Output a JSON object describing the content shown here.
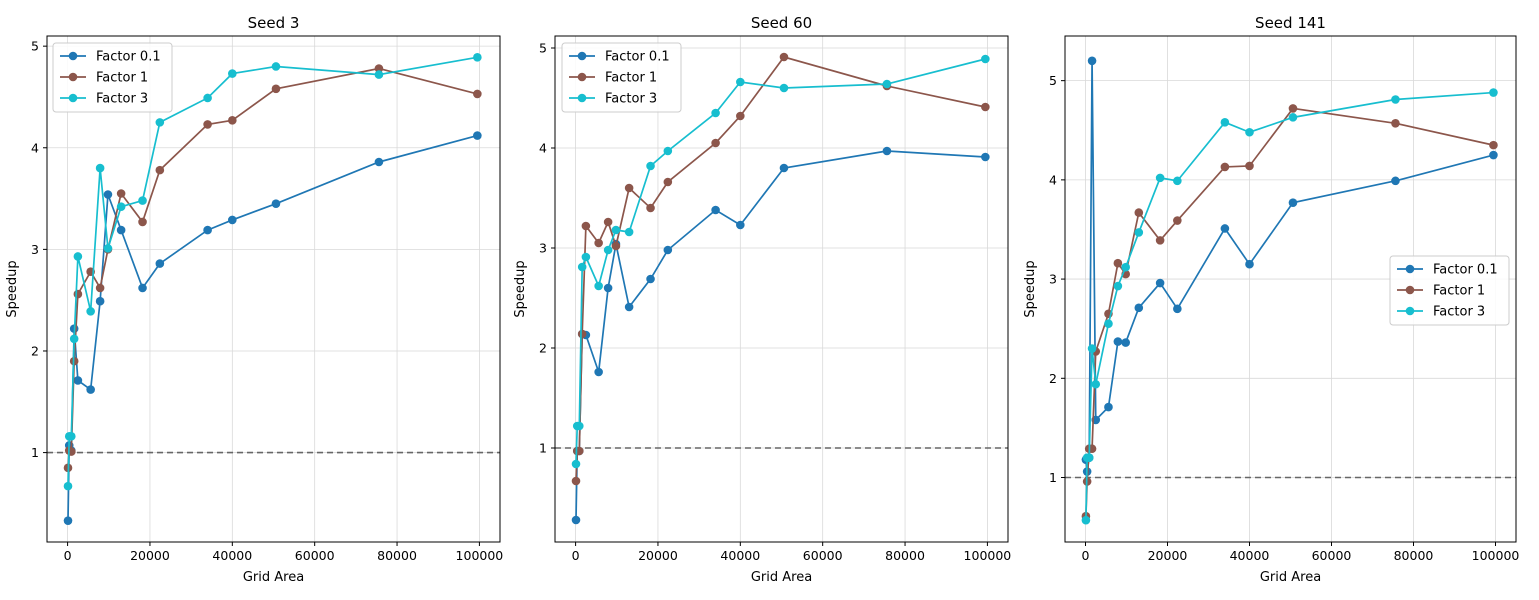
{
  "chart_data": [
    {
      "type": "line",
      "title": "Seed 3",
      "xlabel": "Grid Area",
      "ylabel": "Speedup",
      "xlim": [
        -5000,
        105000
      ],
      "ylim": [
        0.12,
        5.1
      ],
      "xticks": [
        0,
        20000,
        40000,
        60000,
        80000,
        100000
      ],
      "xtick_labels": [
        "0",
        "20000",
        "40000",
        "60000",
        "80000",
        "100000"
      ],
      "yticks": [
        1,
        2,
        3,
        4,
        5
      ],
      "ytick_labels": [
        "1",
        "2",
        "3",
        "4",
        "5"
      ],
      "reference_line": {
        "y": 1,
        "style": "dashed",
        "color": "#666666"
      },
      "grid": true,
      "legend_position": "upper-left",
      "series": [
        {
          "name": "Factor 0.1",
          "color": "#1f77b4",
          "x": [
            100,
            400,
            900,
            1600,
            2500,
            5600,
            7900,
            9800,
            13000,
            18200,
            22400,
            34000,
            40000,
            50600,
            75600,
            99500
          ],
          "y": [
            0.33,
            1.07,
            1.02,
            2.22,
            1.71,
            1.62,
            2.49,
            3.54,
            3.19,
            2.62,
            2.86,
            3.19,
            3.29,
            3.45,
            3.86,
            4.12
          ]
        },
        {
          "name": "Factor 1",
          "color": "#8c564b",
          "x": [
            100,
            400,
            900,
            1600,
            2500,
            5600,
            7900,
            9800,
            13000,
            18200,
            22400,
            34000,
            40000,
            50600,
            75600,
            99500
          ],
          "y": [
            0.85,
            1.02,
            1.01,
            1.9,
            2.56,
            2.78,
            2.62,
            3.0,
            3.55,
            3.27,
            3.78,
            4.23,
            4.27,
            4.58,
            4.78,
            4.53
          ]
        },
        {
          "name": "Factor 3",
          "color": "#17becf",
          "x": [
            100,
            400,
            900,
            1600,
            2500,
            5600,
            7900,
            9800,
            13000,
            18200,
            22400,
            34000,
            40000,
            50600,
            75600,
            99500
          ],
          "y": [
            0.67,
            1.16,
            1.16,
            2.12,
            2.93,
            2.39,
            3.8,
            3.01,
            3.42,
            3.48,
            4.25,
            4.49,
            4.73,
            4.8,
            4.72,
            4.89
          ]
        }
      ]
    },
    {
      "type": "line",
      "title": "Seed 60",
      "xlabel": "Grid Area",
      "ylabel": "Speedup",
      "xlim": [
        -5000,
        105000
      ],
      "ylim": [
        0.06,
        5.12
      ],
      "xticks": [
        0,
        20000,
        40000,
        60000,
        80000,
        100000
      ],
      "xtick_labels": [
        "0",
        "20000",
        "40000",
        "60000",
        "80000",
        "100000"
      ],
      "yticks": [
        1,
        2,
        3,
        4,
        5
      ],
      "ytick_labels": [
        "1",
        "2",
        "3",
        "4",
        "5"
      ],
      "reference_line": {
        "y": 1,
        "style": "dashed",
        "color": "#666666"
      },
      "grid": true,
      "legend_position": "upper-left",
      "series": [
        {
          "name": "Factor 0.1",
          "color": "#1f77b4",
          "x": [
            100,
            400,
            900,
            1600,
            2500,
            5600,
            7900,
            9800,
            13000,
            18200,
            22400,
            34000,
            40000,
            50600,
            75600,
            99500
          ],
          "y": [
            0.28,
            0.97,
            0.97,
            2.14,
            2.13,
            1.76,
            2.6,
            3.04,
            2.41,
            2.69,
            2.98,
            3.38,
            3.23,
            3.8,
            3.97,
            3.91
          ]
        },
        {
          "name": "Factor 1",
          "color": "#8c564b",
          "x": [
            100,
            400,
            900,
            1600,
            2500,
            5600,
            7900,
            9800,
            13000,
            18200,
            22400,
            34000,
            40000,
            50600,
            75600,
            99500
          ],
          "y": [
            0.67,
            0.97,
            0.97,
            2.14,
            3.22,
            3.05,
            3.26,
            3.02,
            3.6,
            3.4,
            3.66,
            4.05,
            4.32,
            4.91,
            4.62,
            4.41
          ]
        },
        {
          "name": "Factor 3",
          "color": "#17becf",
          "x": [
            100,
            400,
            900,
            1600,
            2500,
            5600,
            7900,
            9800,
            13000,
            18200,
            22400,
            34000,
            40000,
            50600,
            75600,
            99500
          ],
          "y": [
            0.84,
            1.22,
            1.22,
            2.81,
            2.91,
            2.62,
            2.98,
            3.18,
            3.16,
            3.82,
            3.97,
            4.35,
            4.66,
            4.6,
            4.64,
            4.89
          ]
        }
      ]
    },
    {
      "type": "line",
      "title": "Seed 141",
      "xlabel": "Grid Area",
      "ylabel": "Speedup",
      "xlim": [
        -5000,
        105000
      ],
      "ylim": [
        0.35,
        5.45
      ],
      "xticks": [
        0,
        20000,
        40000,
        60000,
        80000,
        100000
      ],
      "xtick_labels": [
        "0",
        "20000",
        "40000",
        "60000",
        "80000",
        "100000"
      ],
      "yticks": [
        1,
        2,
        3,
        4,
        5
      ],
      "ytick_labels": [
        "1",
        "2",
        "3",
        "4",
        "5"
      ],
      "reference_line": {
        "y": 1,
        "style": "dashed",
        "color": "#666666"
      },
      "grid": true,
      "legend_position": "center-right",
      "series": [
        {
          "name": "Factor 0.1",
          "color": "#1f77b4",
          "x": [
            100,
            400,
            900,
            1600,
            2500,
            5600,
            7900,
            9800,
            13000,
            18200,
            22400,
            34000,
            40000,
            50600,
            75600,
            99500
          ],
          "y": [
            1.18,
            1.06,
            1.2,
            5.2,
            1.58,
            1.71,
            2.37,
            2.36,
            2.71,
            2.96,
            2.7,
            3.51,
            3.15,
            3.77,
            3.99,
            4.25
          ]
        },
        {
          "name": "Factor 1",
          "color": "#8c564b",
          "x": [
            100,
            400,
            900,
            1600,
            2500,
            5600,
            7900,
            9800,
            13000,
            18200,
            22400,
            34000,
            40000,
            50600,
            75600,
            99500
          ],
          "y": [
            0.61,
            0.96,
            1.29,
            1.29,
            2.27,
            2.65,
            3.16,
            3.05,
            3.67,
            3.39,
            3.59,
            4.13,
            4.14,
            4.72,
            4.57,
            4.35
          ]
        },
        {
          "name": "Factor 3",
          "color": "#17becf",
          "x": [
            100,
            400,
            900,
            1600,
            2500,
            5600,
            7900,
            9800,
            13000,
            18200,
            22400,
            34000,
            40000,
            50600,
            75600,
            99500
          ],
          "y": [
            0.57,
            1.2,
            1.2,
            2.3,
            1.94,
            2.55,
            2.93,
            3.12,
            3.47,
            4.02,
            3.99,
            4.58,
            4.48,
            4.63,
            4.81,
            4.88
          ]
        }
      ]
    }
  ]
}
